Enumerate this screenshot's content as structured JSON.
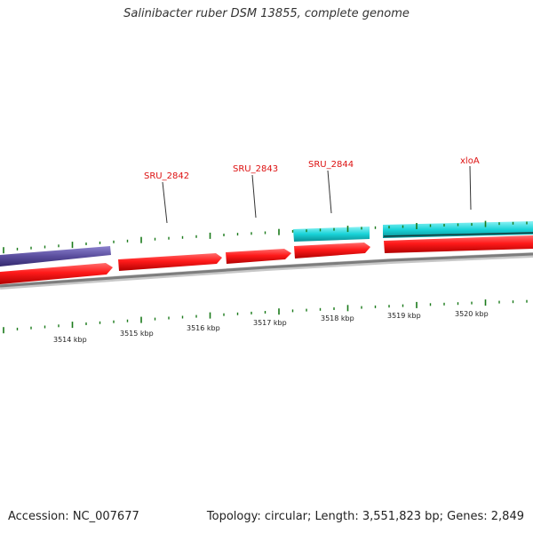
{
  "title": "Salinibacter ruber DSM 13855, complete genome",
  "accession_text": "Accession: NC_007677",
  "summary_text": "Topology: circular; Length: 3,551,823 bp; Genes: 2,849",
  "colors": {
    "forward_gene": "#ff1a1a",
    "reverse_gene": "#5a4e9e",
    "cyan_gene": "#19d3d8",
    "backbone": "#8c8c8c",
    "tick": "#1a7a1a",
    "label": "#dd1111"
  },
  "gene_labels": [
    "SRU_2842",
    "SRU_2843",
    "SRU_2844",
    "xloA"
  ],
  "kbp_labels": [
    "3514 kbp",
    "3515 kbp",
    "3516 kbp",
    "3517 kbp",
    "3518 kbp",
    "3519 kbp",
    "3520 kbp"
  ]
}
